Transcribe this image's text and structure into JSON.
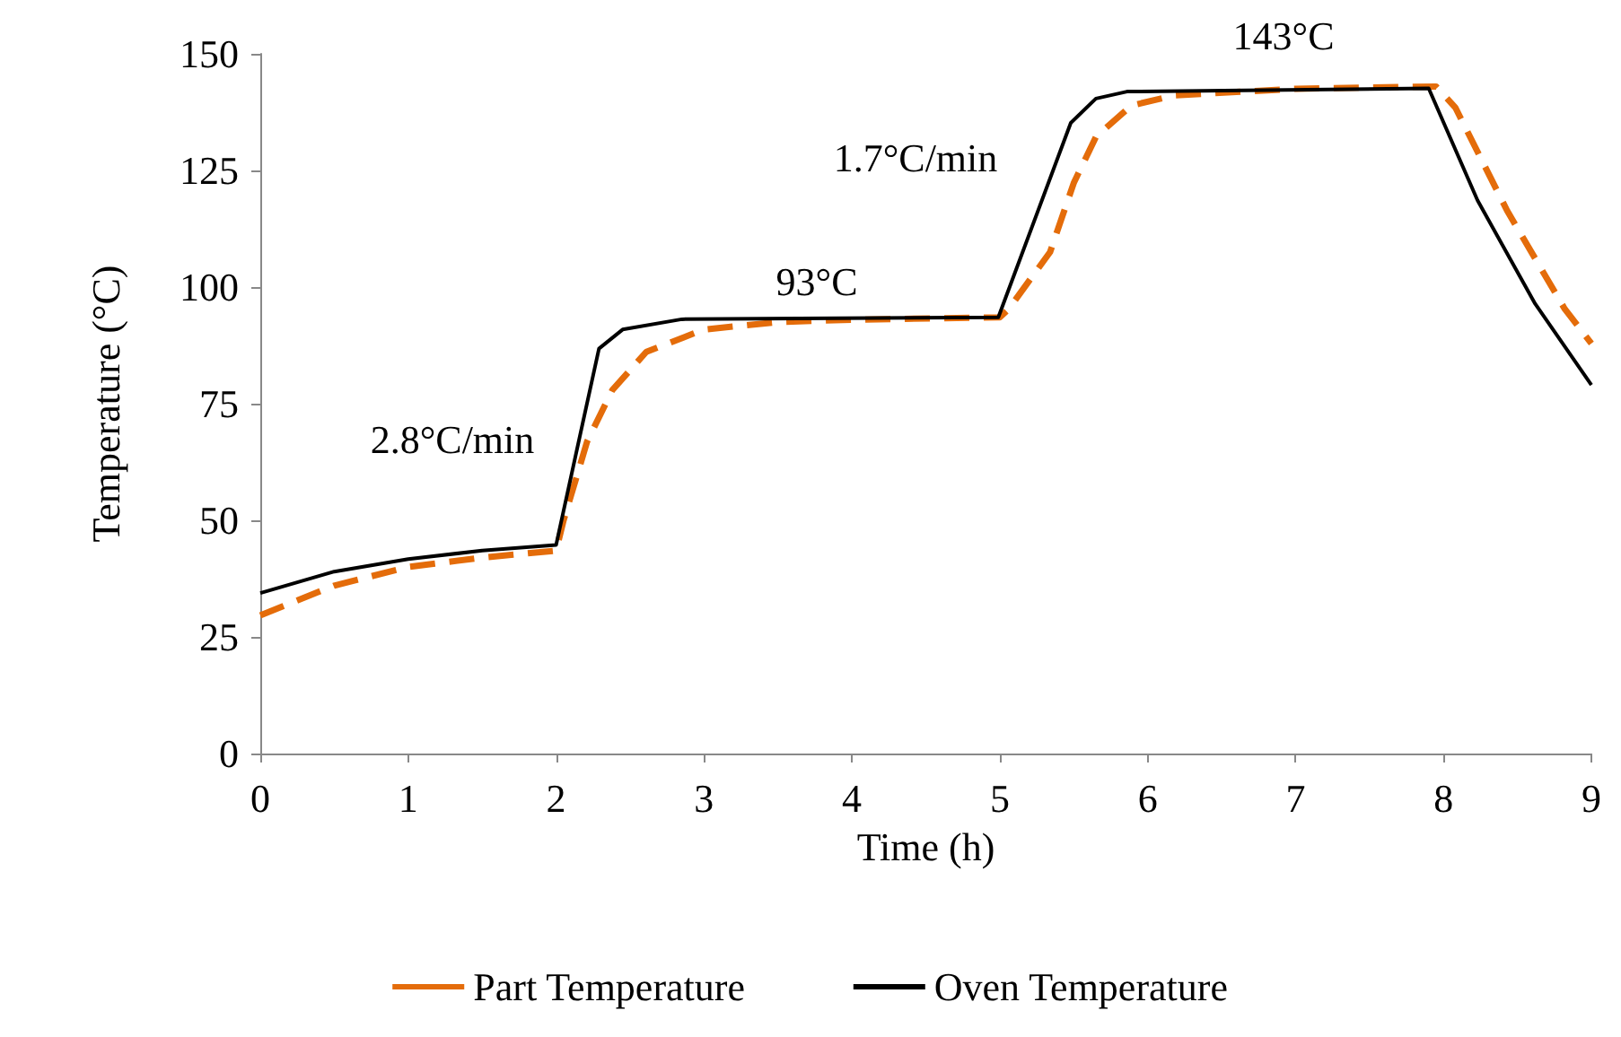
{
  "chart_data": {
    "type": "line",
    "xlabel": "Time (h)",
    "ylabel": "Temperature (°C)",
    "xlim": [
      0,
      9
    ],
    "xticks": [
      0,
      1,
      2,
      3,
      4,
      5,
      6,
      7,
      8,
      9
    ],
    "ylim": [
      0,
      150
    ],
    "yticks": [
      0,
      25,
      50,
      75,
      100,
      125,
      150
    ],
    "grid": false,
    "legend": "bottom",
    "marker": "none",
    "annotations": [
      "2.8°C/min",
      "93°C",
      "1.7°C/min",
      "143°C"
    ],
    "series": [
      {
        "name": "Part Temperature",
        "color": "#e46c0a",
        "line_style": "dashed",
        "x": [
          0,
          0.5,
          1,
          1.5,
          2,
          2.05,
          2.21,
          2.38,
          2.61,
          3,
          3.5,
          4,
          5,
          5.06,
          5.34,
          5.5,
          5.65,
          5.89,
          6.18,
          7,
          7.95,
          8.08,
          8.43,
          8.82,
          9
        ],
        "values": [
          29.6,
          36,
          40,
          42,
          43.5,
          49.9,
          66.9,
          77.9,
          86.1,
          90.9,
          92.5,
          93,
          93.5,
          95.3,
          107.5,
          122.3,
          132.2,
          138.9,
          141.1,
          142.5,
          143,
          138.5,
          116.4,
          95.3,
          87.9
        ]
      },
      {
        "name": "Oven Temperature",
        "color": "#000000",
        "line_style": "solid",
        "x": [
          0,
          0.5,
          1,
          1.5,
          2,
          2.29,
          2.45,
          2.85,
          4.99,
          5.48,
          5.65,
          5.86,
          7.9,
          8.23,
          8.62,
          9
        ],
        "values": [
          34.4,
          39,
          41.7,
          43.5,
          44.7,
          86.8,
          90.9,
          93.1,
          93.5,
          135.2,
          140.4,
          141.9,
          142.6,
          118.6,
          96.4,
          79
        ]
      }
    ]
  }
}
